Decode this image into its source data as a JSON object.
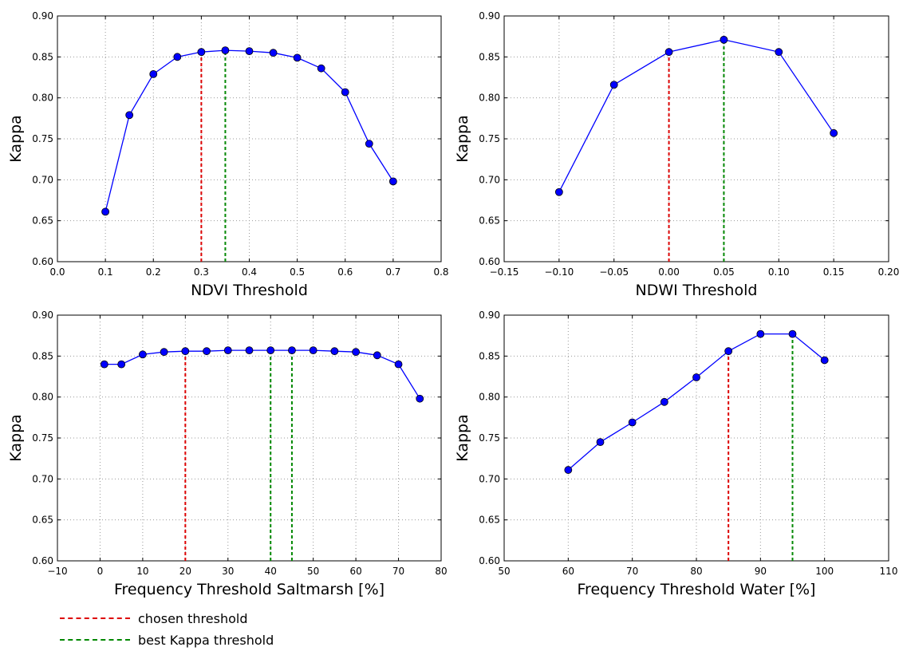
{
  "colors": {
    "series": "#0000ff",
    "chosen": "#dd0000",
    "best": "#008800"
  },
  "legend": {
    "chosen_label": "chosen threshold",
    "best_label": "best Kappa threshold"
  },
  "chart_data": [
    {
      "type": "line",
      "xlabel": "NDVI Threshold",
      "ylabel": "Kappa",
      "xlim": [
        0.0,
        0.8
      ],
      "ylim": [
        0.6,
        0.9
      ],
      "xticks": [
        "0.0",
        "0.1",
        "0.2",
        "0.3",
        "0.4",
        "0.5",
        "0.6",
        "0.7",
        "0.8"
      ],
      "yticks": [
        "0.60",
        "0.65",
        "0.70",
        "0.75",
        "0.80",
        "0.85",
        "0.90"
      ],
      "grid": true,
      "x": [
        0.1,
        0.15,
        0.2,
        0.25,
        0.3,
        0.35,
        0.4,
        0.45,
        0.5,
        0.55,
        0.6,
        0.65,
        0.7
      ],
      "y": [
        0.661,
        0.779,
        0.829,
        0.85,
        0.856,
        0.858,
        0.857,
        0.855,
        0.849,
        0.836,
        0.807,
        0.744,
        0.698
      ],
      "chosen": [
        0.3
      ],
      "best": [
        0.35
      ]
    },
    {
      "type": "line",
      "xlabel": "NDWI Threshold",
      "ylabel": "Kappa",
      "xlim": [
        -0.15,
        0.2
      ],
      "ylim": [
        0.6,
        0.9
      ],
      "xticks": [
        "−0.15",
        "−0.10",
        "−0.05",
        "0.00",
        "0.05",
        "0.10",
        "0.15",
        "0.20"
      ],
      "yticks": [
        "0.60",
        "0.65",
        "0.70",
        "0.75",
        "0.80",
        "0.85",
        "0.90"
      ],
      "grid": true,
      "x": [
        -0.1,
        -0.05,
        0.0,
        0.05,
        0.1,
        0.15
      ],
      "y": [
        0.685,
        0.816,
        0.856,
        0.871,
        0.856,
        0.757
      ],
      "chosen": [
        0.0
      ],
      "best": [
        0.05
      ]
    },
    {
      "type": "line",
      "xlabel": "Frequency Threshold Saltmarsh [%]",
      "ylabel": "Kappa",
      "xlim": [
        -10,
        80
      ],
      "ylim": [
        0.6,
        0.9
      ],
      "xticks": [
        "−10",
        "0",
        "10",
        "20",
        "30",
        "40",
        "50",
        "60",
        "70",
        "80"
      ],
      "yticks": [
        "0.60",
        "0.65",
        "0.70",
        "0.75",
        "0.80",
        "0.85",
        "0.90"
      ],
      "grid": true,
      "x": [
        1,
        5,
        10,
        15,
        20,
        25,
        30,
        35,
        40,
        45,
        50,
        55,
        60,
        65,
        70,
        75
      ],
      "y": [
        0.84,
        0.84,
        0.852,
        0.855,
        0.856,
        0.856,
        0.857,
        0.857,
        0.857,
        0.857,
        0.857,
        0.856,
        0.855,
        0.851,
        0.84,
        0.798
      ],
      "chosen": [
        20
      ],
      "best": [
        40,
        45
      ]
    },
    {
      "type": "line",
      "xlabel": "Frequency Threshold Water [%]",
      "ylabel": "Kappa",
      "xlim": [
        50,
        110
      ],
      "ylim": [
        0.6,
        0.9
      ],
      "xticks": [
        "50",
        "60",
        "70",
        "80",
        "90",
        "100",
        "110"
      ],
      "yticks": [
        "0.60",
        "0.65",
        "0.70",
        "0.75",
        "0.80",
        "0.85",
        "0.90"
      ],
      "grid": true,
      "x": [
        60,
        65,
        70,
        75,
        80,
        85,
        90,
        95,
        100
      ],
      "y": [
        0.711,
        0.745,
        0.769,
        0.794,
        0.824,
        0.856,
        0.877,
        0.877,
        0.845
      ],
      "chosen": [
        85
      ],
      "best": [
        95
      ]
    }
  ]
}
